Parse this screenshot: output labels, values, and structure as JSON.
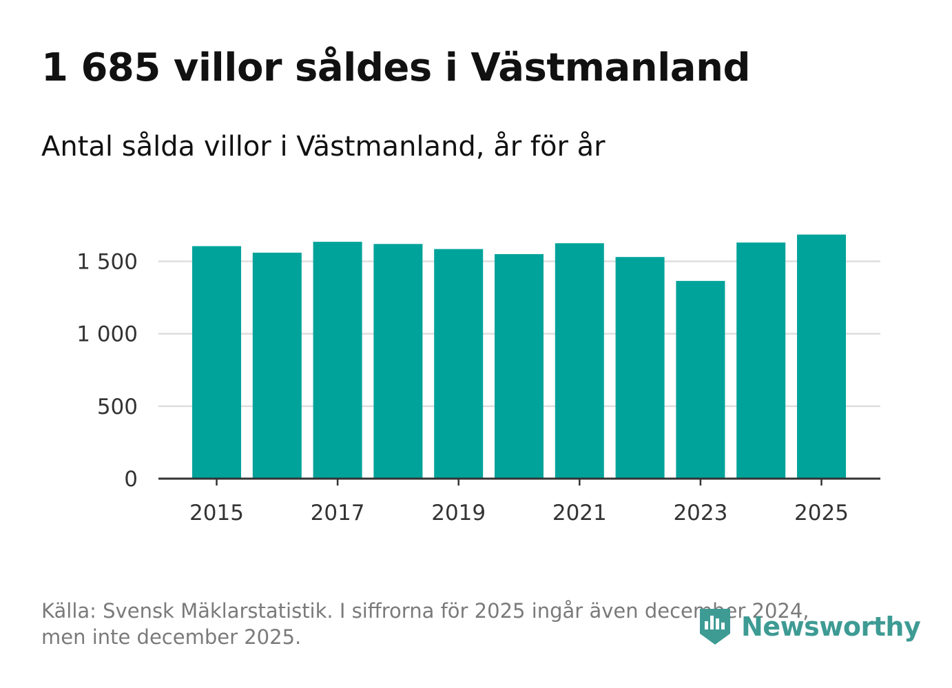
{
  "title": "1 685 villor såldes i Västmanland",
  "subtitle": "Antal sålda villor i Västmanland, år för år",
  "footer": {
    "source_line1": "Källa: Svensk Mäklarstatistik. I siffrorna för 2025 ingår även december 2024,",
    "source_line2": "men inte december 2025."
  },
  "logo": {
    "text": "Newsworthy",
    "icon": "newsworthy-logo-icon"
  },
  "colors": {
    "bar": "#00A39A",
    "grid": "#dddddd",
    "axis": "#333333",
    "logo": "#3e9b94"
  },
  "chart_data": {
    "type": "bar",
    "title": "Antal sålda villor i Västmanland, år för år",
    "xlabel": "",
    "ylabel": "",
    "categories": [
      "2015",
      "2016",
      "2017",
      "2018",
      "2019",
      "2020",
      "2021",
      "2022",
      "2023",
      "2024",
      "2025"
    ],
    "values": [
      1605,
      1560,
      1635,
      1620,
      1585,
      1550,
      1625,
      1530,
      1365,
      1630,
      1685
    ],
    "x_tick_labels": [
      "2015",
      "2017",
      "2019",
      "2021",
      "2023",
      "2025"
    ],
    "y_ticks": [
      0,
      500,
      1000,
      1500
    ],
    "y_tick_labels": [
      "0",
      "500",
      "1 000",
      "1 500"
    ],
    "ylim": [
      0,
      1700
    ],
    "grid": true,
    "legend": "none"
  }
}
